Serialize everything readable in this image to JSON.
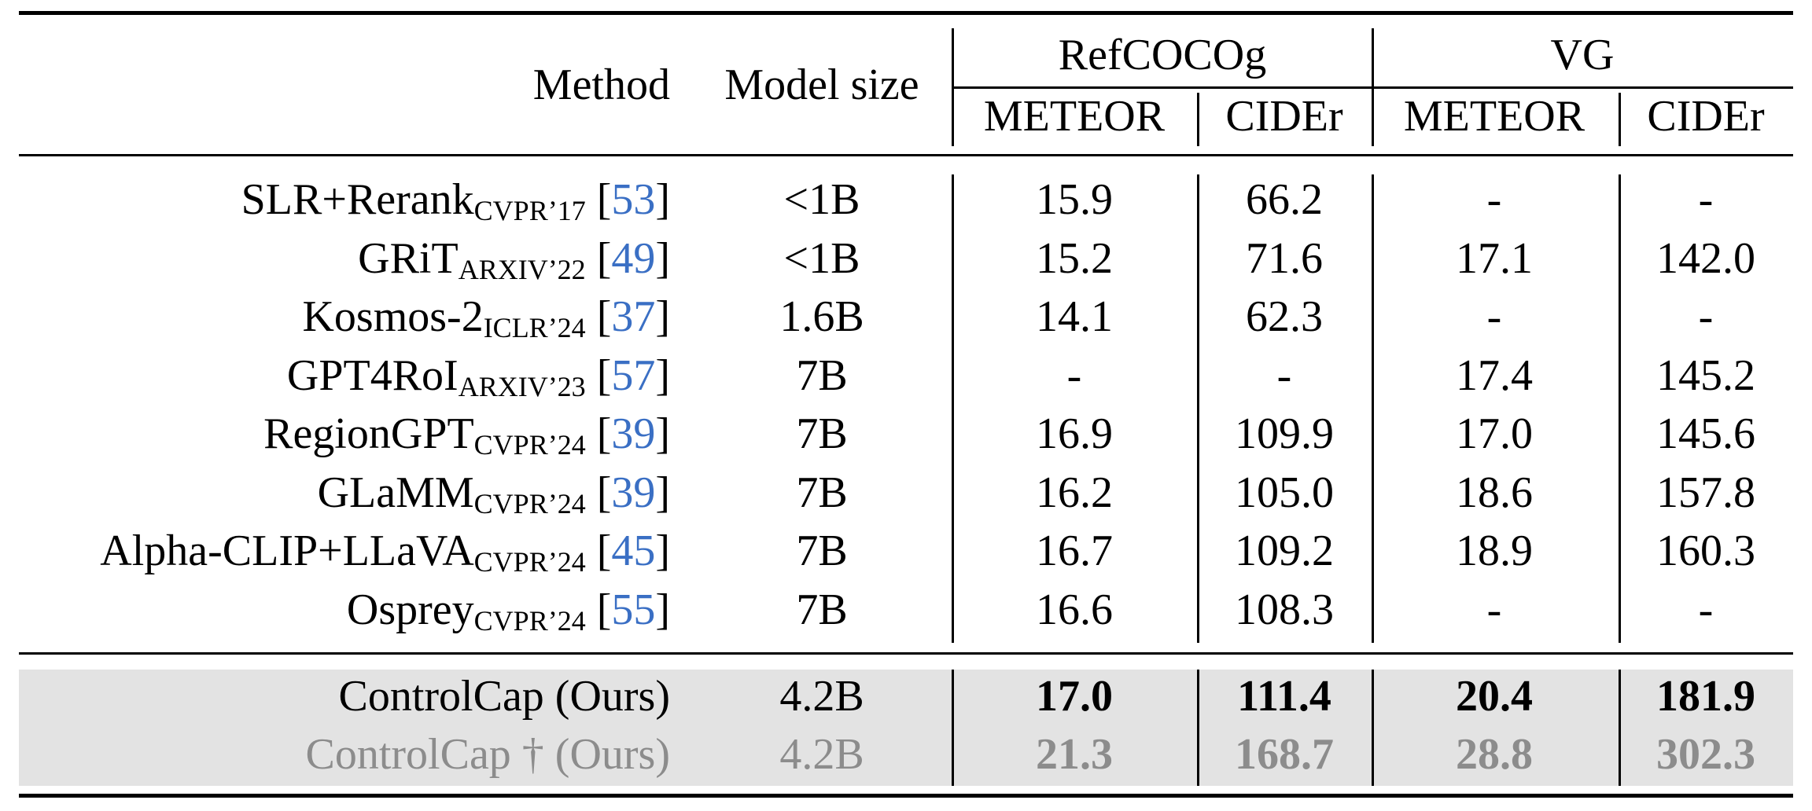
{
  "header": {
    "method": "Method",
    "model_size": "Model size",
    "groups": [
      {
        "name": "RefCOCOg",
        "metrics": [
          "METEOR",
          "CIDEr"
        ]
      },
      {
        "name": "VG",
        "metrics": [
          "METEOR",
          "CIDEr"
        ]
      }
    ]
  },
  "rows": [
    {
      "name": "SLR+Rerank",
      "venue": "CVPR’17",
      "ref": "53",
      "size": "<1B",
      "values": [
        "15.9",
        "66.2",
        "-",
        "-"
      ]
    },
    {
      "name": "GRiT",
      "venue": "ARXIV’22",
      "ref": "49",
      "size": "<1B",
      "values": [
        "15.2",
        "71.6",
        "17.1",
        "142.0"
      ]
    },
    {
      "name": "Kosmos-2",
      "venue": "ICLR’24",
      "ref": "37",
      "size": "1.6B",
      "values": [
        "14.1",
        "62.3",
        "-",
        "-"
      ]
    },
    {
      "name": "GPT4RoI",
      "venue": "ARXIV’23",
      "ref": "57",
      "size": "7B",
      "values": [
        "-",
        "-",
        "17.4",
        "145.2"
      ]
    },
    {
      "name": "RegionGPT",
      "venue": "CVPR’24",
      "ref": "39",
      "size": "7B",
      "values": [
        "16.9",
        "109.9",
        "17.0",
        "145.6"
      ]
    },
    {
      "name": "GLaMM",
      "venue": "CVPR’24",
      "ref": "39",
      "size": "7B",
      "values": [
        "16.2",
        "105.0",
        "18.6",
        "157.8"
      ]
    },
    {
      "name": "Alpha-CLIP+LLaVA",
      "venue": "CVPR’24",
      "ref": "45",
      "size": "7B",
      "values": [
        "16.7",
        "109.2",
        "18.9",
        "160.3"
      ]
    },
    {
      "name": "Osprey",
      "venue": "CVPR’24",
      "ref": "55",
      "size": "7B",
      "values": [
        "16.6",
        "108.3",
        "-",
        "-"
      ]
    }
  ],
  "ours": [
    {
      "name": "ControlCap (Ours)",
      "size": "4.2B",
      "values": [
        "17.0",
        "111.4",
        "20.4",
        "181.9"
      ]
    },
    {
      "name": "ControlCap † (Ours)",
      "size": "4.2B",
      "values": [
        "21.3",
        "168.7",
        "28.8",
        "302.3"
      ]
    }
  ]
}
